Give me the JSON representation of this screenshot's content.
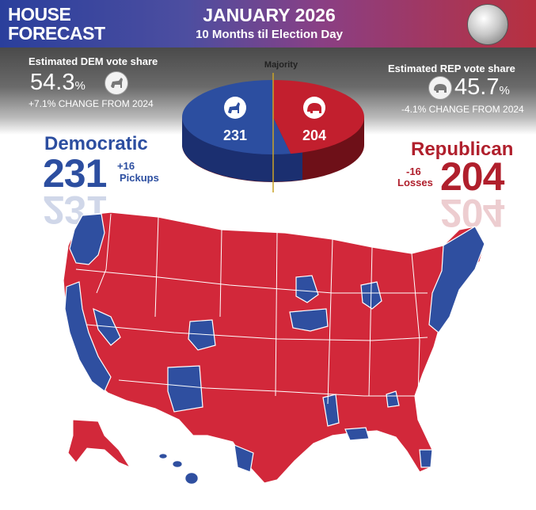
{
  "header": {
    "title_line1": "HOUSE",
    "title_line2": "FORECAST",
    "date": "JANUARY 2026",
    "subtitle": "10 Months til Election Day"
  },
  "majority_label": "Majority",
  "dem": {
    "share_label": "Estimated DEM vote share",
    "share_value": "54.3",
    "share_unit": "%",
    "change": "+7.1% CHANGE FROM 2024",
    "party_name": "Democratic",
    "seats": "231",
    "delta": "+16",
    "delta_label": "Pickups",
    "color": "#2c4ea0"
  },
  "rep": {
    "share_label": "Estimated REP vote share",
    "share_value": "45.7",
    "share_unit": "%",
    "change": "-4.1% CHANGE FROM 2024",
    "party_name": "Republican",
    "seats": "204",
    "delta": "-16",
    "delta_label": "Losses",
    "color": "#c21f2e"
  },
  "pie": {
    "dem_seats": 231,
    "rep_seats": 204
  },
  "map": {
    "dem_color": "#2f4fa0",
    "rep_color": "#d2283a"
  }
}
